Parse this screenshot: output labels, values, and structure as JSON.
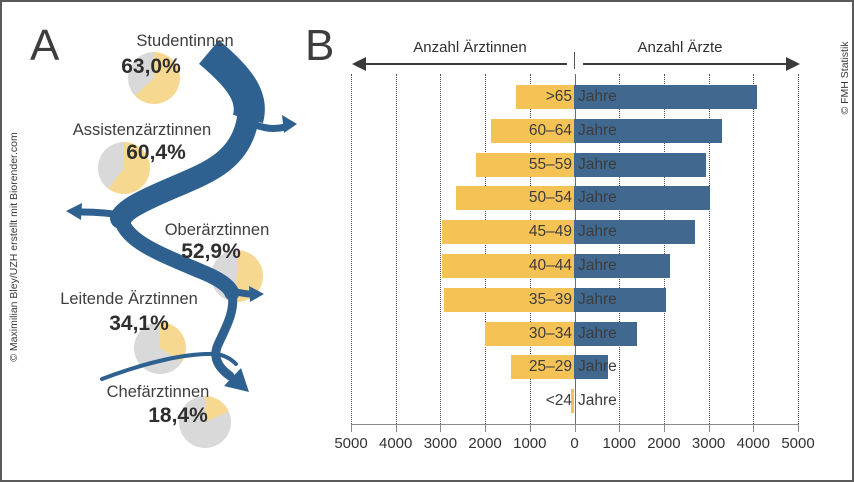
{
  "credits": {
    "left": "© Maximilian Bley/UZH erstellt mit Biorender.com",
    "right": "© FMH Statistik"
  },
  "panel_a": {
    "label": "A",
    "stages": [
      {
        "name": "Studentinnen",
        "pct_label": "63,0%",
        "pct": 63.0
      },
      {
        "name": "Assistenzärztinnen",
        "pct_label": "60,4%",
        "pct": 60.4
      },
      {
        "name": "Oberärztinnen",
        "pct_label": "52,9%",
        "pct": 52.9
      },
      {
        "name": "Leitende Ärztinnen",
        "pct_label": "34,1%",
        "pct": 34.1
      },
      {
        "name": "Chefärztinnen",
        "pct_label": "18,4%",
        "pct": 18.4
      }
    ]
  },
  "panel_b": {
    "label": "B",
    "left_axis_title": "Anzahl Ärztinnen",
    "right_axis_title": "Anzahl Ärzte",
    "x_tick_labels": [
      "5000",
      "4000",
      "3000",
      "2000",
      "1000",
      "0",
      "1000",
      "2000",
      "3000",
      "4000",
      "5000"
    ]
  },
  "chart_data": {
    "type": "bar",
    "subtype": "population-pyramid",
    "categories": [
      ">65",
      "60–64",
      "55–59",
      "50–54",
      "45–49",
      "40–44",
      "35–39",
      "30–34",
      "25–29",
      "<24"
    ],
    "category_suffix": "Jahre",
    "series": [
      {
        "name": "Anzahl Ärztinnen",
        "side": "left",
        "color": "#F5C355",
        "values": [
          1300,
          1850,
          2200,
          2650,
          2950,
          2950,
          2900,
          2000,
          1400,
          60
        ]
      },
      {
        "name": "Anzahl Ärzte",
        "side": "right",
        "color": "#41688E",
        "values": [
          4100,
          3300,
          2950,
          3050,
          2700,
          2150,
          2050,
          1400,
          750,
          0
        ]
      }
    ],
    "xlim": [
      -5000,
      5000
    ],
    "x_tick_step": 1000,
    "grid": "dotted-vertical",
    "legend_position": "top-arrows"
  },
  "colors": {
    "women_yellow": "#F5C355",
    "men_blue": "#41688E",
    "pie_yellow": "#F6D891",
    "pie_gray": "#D9D9D9",
    "river_blue": "#2E6190",
    "text_dark": "#3a3a3a"
  }
}
